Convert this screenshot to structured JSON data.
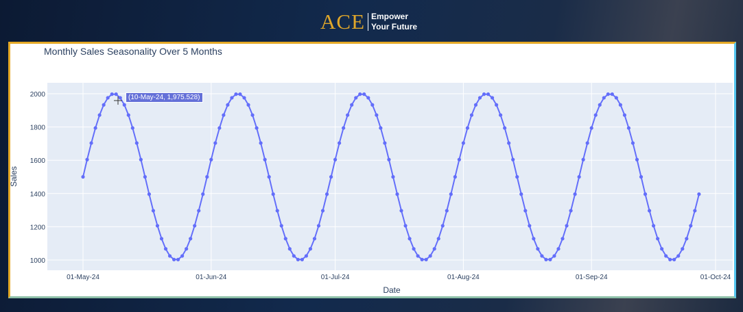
{
  "header": {
    "logo_text": "ACE",
    "tagline_line1": "Empower",
    "tagline_line2": "Your Future"
  },
  "hover": {
    "label": "(10-May-24, 1,975.528)"
  },
  "chart_data": {
    "type": "line",
    "title": "Monthly Sales Seasonality Over 5 Months",
    "xlabel": "Date",
    "ylabel": "Sales",
    "x_range_dates": [
      "2024-05-01",
      "2024-09-27"
    ],
    "frequency": "daily",
    "x_ticks": [
      "01-May-24",
      "01-Jun-24",
      "01-Jul-24",
      "01-Aug-24",
      "01-Sep-24",
      "01-Oct-24"
    ],
    "y_ticks": [
      "1000",
      "1200",
      "1400",
      "1600",
      "1800",
      "2000"
    ],
    "ylim": [
      938,
      2066
    ],
    "grid": true,
    "line_color": "#636efa",
    "plot_bg": "#e5ecf6",
    "values": [
      1500.0,
      1604.0,
      1703.4,
      1793.9,
      1871.6,
      1933.0,
      1975.5,
      1997.3,
      1997.3,
      1975.5,
      1933.0,
      1871.6,
      1793.9,
      1703.4,
      1604.0,
      1500.0,
      1396.0,
      1296.6,
      1206.1,
      1128.4,
      1067.0,
      1024.5,
      1002.7,
      1002.7,
      1024.5,
      1067.0,
      1128.4,
      1206.1,
      1296.6,
      1396.0,
      1500.0,
      1604.0,
      1703.4,
      1793.9,
      1871.6,
      1933.0,
      1975.5,
      1997.3,
      1997.3,
      1975.5,
      1933.0,
      1871.6,
      1793.9,
      1703.4,
      1604.0,
      1500.0,
      1396.0,
      1296.6,
      1206.1,
      1128.4,
      1067.0,
      1024.5,
      1002.7,
      1002.7,
      1024.5,
      1067.0,
      1128.4,
      1206.1,
      1296.6,
      1396.0,
      1500.0,
      1604.0,
      1703.4,
      1793.9,
      1871.6,
      1933.0,
      1975.5,
      1997.3,
      1997.3,
      1975.5,
      1933.0,
      1871.6,
      1793.9,
      1703.4,
      1604.0,
      1500.0,
      1396.0,
      1296.6,
      1206.1,
      1128.4,
      1067.0,
      1024.5,
      1002.7,
      1002.7,
      1024.5,
      1067.0,
      1128.4,
      1206.1,
      1296.6,
      1396.0,
      1500.0,
      1604.0,
      1703.4,
      1793.9,
      1871.6,
      1933.0,
      1975.5,
      1997.3,
      1997.3,
      1975.5,
      1933.0,
      1871.6,
      1793.9,
      1703.4,
      1604.0,
      1500.0,
      1396.0,
      1296.6,
      1206.1,
      1128.4,
      1067.0,
      1024.5,
      1002.7,
      1002.7,
      1024.5,
      1067.0,
      1128.4,
      1206.1,
      1296.6,
      1396.0,
      1500.0,
      1604.0,
      1703.4,
      1793.9,
      1871.6,
      1933.0,
      1975.5,
      1997.3,
      1997.3,
      1975.5,
      1933.0,
      1871.6,
      1793.9,
      1703.4,
      1604.0,
      1500.0,
      1396.0,
      1296.6,
      1206.1,
      1128.4,
      1067.0,
      1024.5,
      1002.7,
      1002.7,
      1024.5,
      1067.0,
      1128.4,
      1206.1,
      1296.6,
      1396.0
    ]
  }
}
